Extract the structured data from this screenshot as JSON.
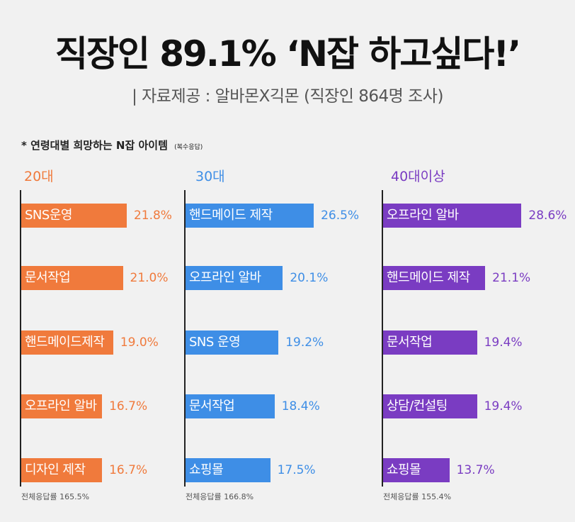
{
  "title": "직장인 89.1% ‘N잡 하고싶다!’",
  "source": "| 자료제공 : 알바몬X긱몬 (직장인 864명 조사)",
  "section_title": "* 연령대별 희망하는 N잡 아이템",
  "section_note": "(복수응답)",
  "colors": {
    "20대": "#f07a3c",
    "30대": "#3e8ee6",
    "40대이상": "#7a3cc2"
  },
  "chart_data": [
    {
      "type": "bar",
      "title": "20대",
      "categories": [
        "SNS운영",
        "문서작업",
        "핸드메이드제작",
        "오프라인 알바",
        "디자인 제작"
      ],
      "values": [
        21.8,
        21.0,
        19.0,
        16.7,
        16.7
      ],
      "value_labels": [
        "21.8%",
        "21.0%",
        "19.0%",
        "16.7%",
        "16.7%"
      ],
      "total_label": "전체응답률 165.5%",
      "color": "#f07a3c",
      "xlim": [
        0,
        30
      ]
    },
    {
      "type": "bar",
      "title": "30대",
      "categories": [
        "핸드메이드 제작",
        "오프라인 알바",
        "SNS 운영",
        "문서작업",
        "쇼핑몰"
      ],
      "values": [
        26.5,
        20.1,
        19.2,
        18.4,
        17.5
      ],
      "value_labels": [
        "26.5%",
        "20.1%",
        "19.2%",
        "18.4%",
        "17.5%"
      ],
      "total_label": "전체응답률 166.8%",
      "color": "#3e8ee6",
      "xlim": [
        0,
        30
      ]
    },
    {
      "type": "bar",
      "title": "40대이상",
      "categories": [
        "오프라인 알바",
        "핸드메이드 제작",
        "문서작업",
        "상담/컨설팅",
        "쇼핑몰"
      ],
      "values": [
        28.6,
        21.1,
        19.4,
        19.4,
        13.7
      ],
      "value_labels": [
        "28.6%",
        "21.1%",
        "19.4%",
        "19.4%",
        "13.7%"
      ],
      "total_label": "전체응답률 155.4%",
      "color": "#7a3cc2",
      "xlim": [
        0,
        30
      ]
    }
  ]
}
